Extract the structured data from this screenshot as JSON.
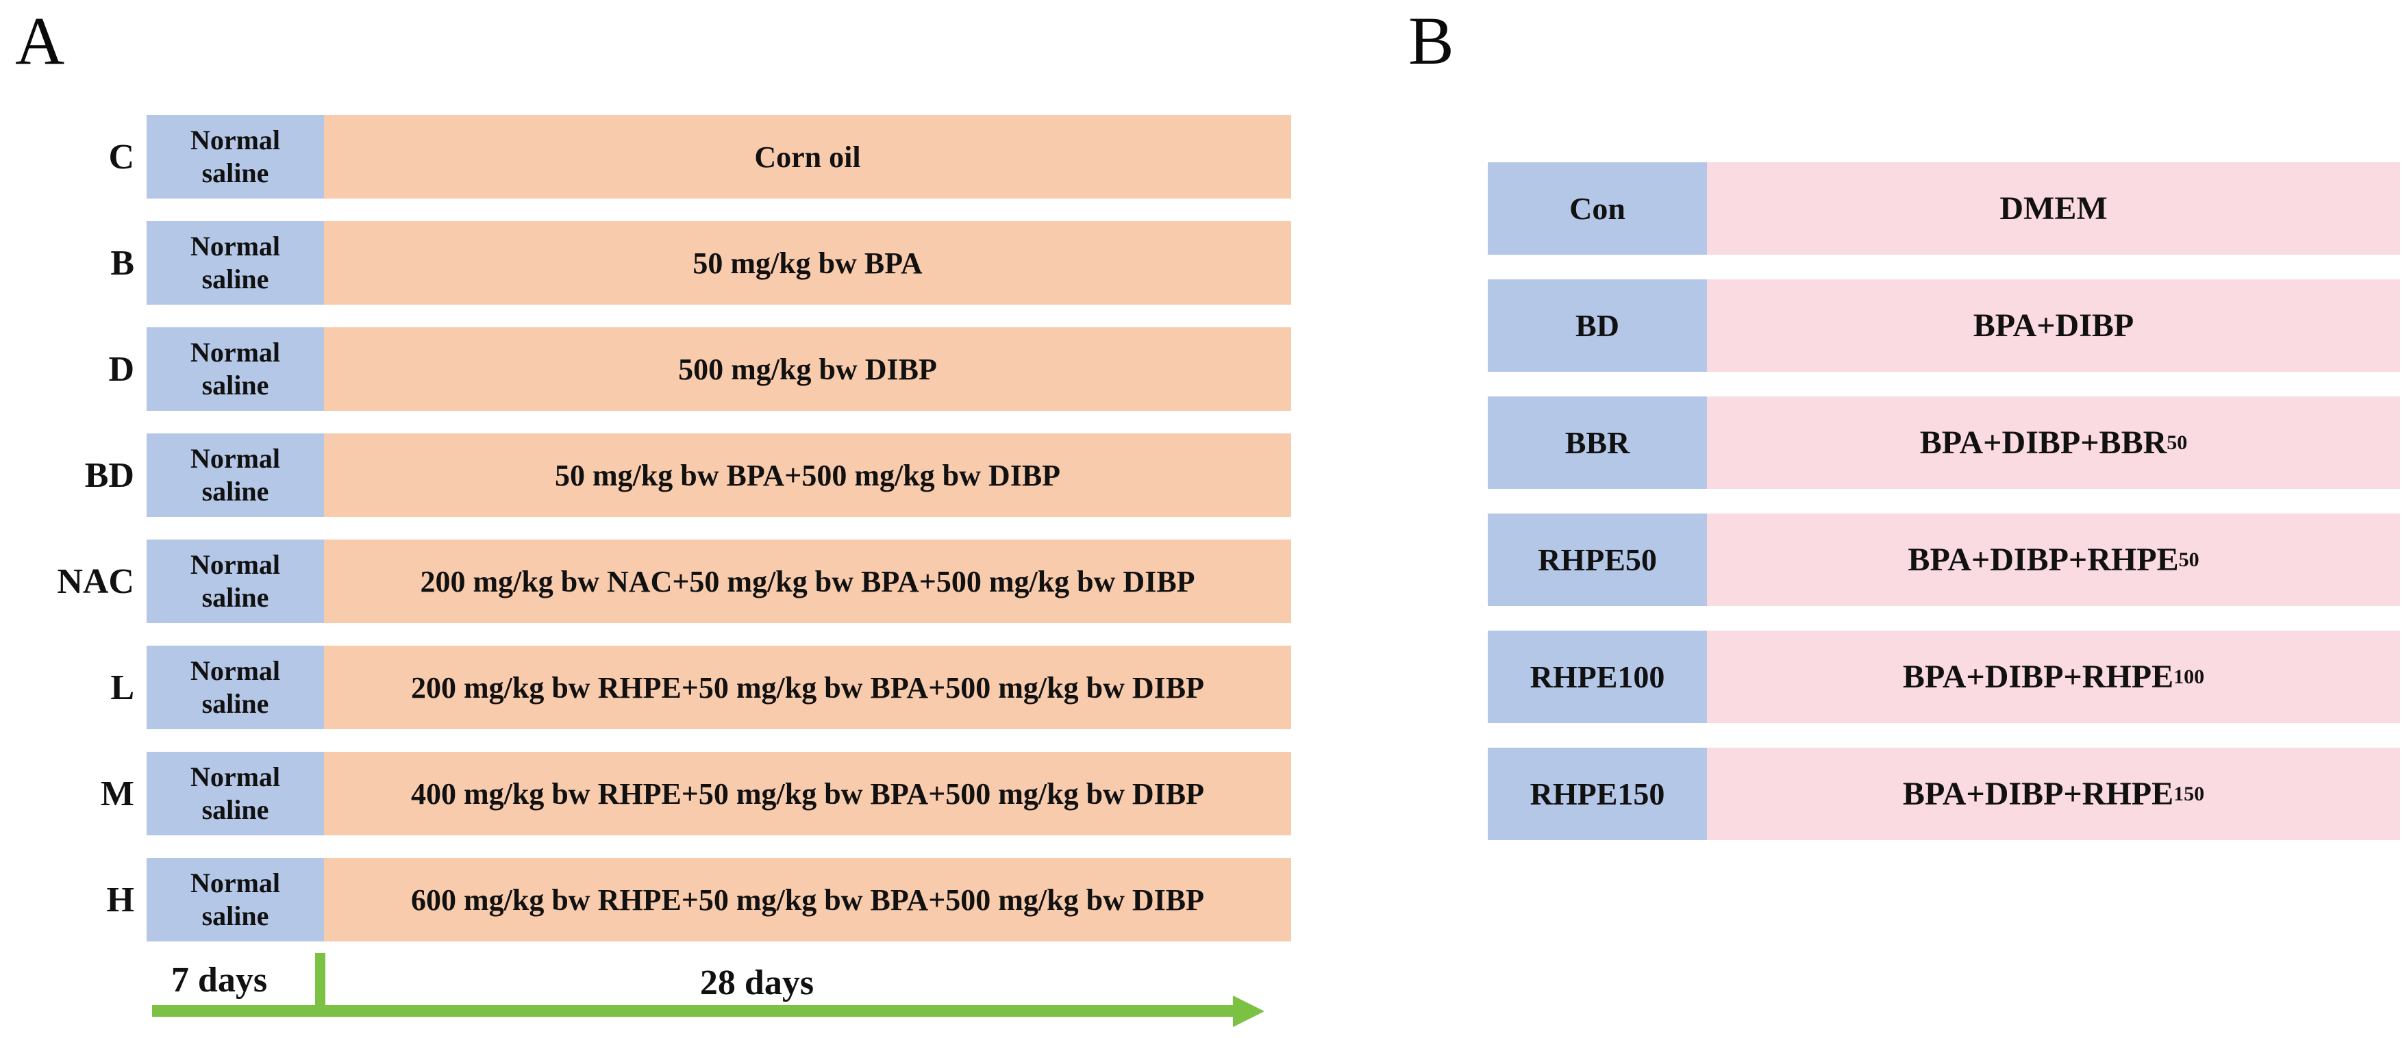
{
  "colors": {
    "saline_blue": "#b4c7e7",
    "treatment_orange": "#f8cbad",
    "treatment_pink": "#fadbe2",
    "timeline_green": "#7bc143",
    "text": "#111111",
    "background": "#ffffff"
  },
  "panel_a": {
    "label": "A",
    "rows": [
      {
        "group": "C",
        "pretreatment": "Normal saline",
        "treatment": "Corn oil"
      },
      {
        "group": "B",
        "pretreatment": "Normal saline",
        "treatment": "50 mg/kg bw BPA"
      },
      {
        "group": "D",
        "pretreatment": "Normal saline",
        "treatment": "500 mg/kg bw DIBP"
      },
      {
        "group": "BD",
        "pretreatment": "Normal saline",
        "treatment": "50 mg/kg bw BPA+500 mg/kg bw DIBP"
      },
      {
        "group": "NAC",
        "pretreatment": "Normal saline",
        "treatment": "200 mg/kg bw NAC+50 mg/kg bw BPA+500 mg/kg bw DIBP"
      },
      {
        "group": "L",
        "pretreatment": "Normal saline",
        "treatment": "200 mg/kg bw RHPE+50 mg/kg bw BPA+500 mg/kg bw DIBP"
      },
      {
        "group": "M",
        "pretreatment": "Normal saline",
        "treatment": "400 mg/kg bw RHPE+50 mg/kg bw BPA+500 mg/kg bw DIBP"
      },
      {
        "group": "H",
        "pretreatment": "Normal saline",
        "treatment": "600 mg/kg bw RHPE+50 mg/kg bw BPA+500 mg/kg bw DIBP"
      }
    ],
    "timeline": {
      "pre_label": "7 days",
      "main_label": "28 days"
    }
  },
  "panel_b": {
    "label": "B",
    "rows": [
      {
        "group": "Con",
        "treatment": "DMEM",
        "treatment_sub": ""
      },
      {
        "group": "BD",
        "treatment": "BPA+DIBP",
        "treatment_sub": ""
      },
      {
        "group": "BBR",
        "treatment": "BPA+DIBP+BBR",
        "treatment_sub": "50"
      },
      {
        "group": "RHPE50",
        "treatment": "BPA+DIBP+RHPE",
        "treatment_sub": "50"
      },
      {
        "group": "RHPE100",
        "treatment": "BPA+DIBP+RHPE",
        "treatment_sub": "100"
      },
      {
        "group": "RHPE150",
        "treatment": "BPA+DIBP+RHPE",
        "treatment_sub": "150"
      }
    ]
  }
}
